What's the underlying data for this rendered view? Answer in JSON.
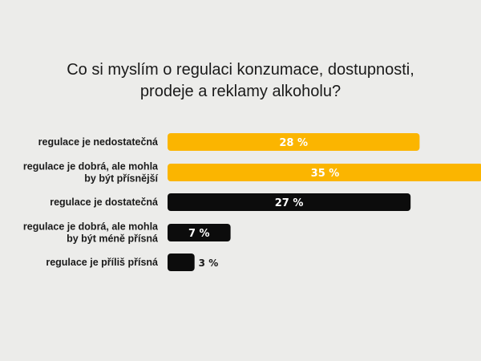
{
  "title_lines": [
    "Co si myslím o regulaci konzumace, dostupnosti,",
    "prodeje a reklamy alkoholu?"
  ],
  "colors": {
    "background": "#ececea",
    "highlight": "#fbb500",
    "dark": "#0c0c0c"
  },
  "chart_data": {
    "type": "bar",
    "orientation": "horizontal",
    "title": "Co si myslím o regulaci konzumace, dostupnosti, prodeje a reklamy alkoholu?",
    "categories": [
      [
        "regulace je nedostatečná"
      ],
      [
        "regulace je dobrá, ale mohla",
        "by být přísnější"
      ],
      [
        "regulace je dostatečná"
      ],
      [
        "regulace je dobrá, ale mohla",
        "by být méně přísná"
      ],
      [
        "regulace je příliš přísná"
      ]
    ],
    "values": [
      28,
      35,
      27,
      7,
      3
    ],
    "value_labels": [
      "28 %",
      "35 %",
      "27 %",
      "7 %",
      "3 %"
    ],
    "bar_colors": [
      "#fbb500",
      "#fbb500",
      "#0c0c0c",
      "#0c0c0c",
      "#0c0c0c"
    ],
    "label_colors": [
      "#ffffff",
      "#ffffff",
      "#ffffff",
      "#ffffff",
      "#1a1a1a"
    ],
    "unit": "%",
    "xlim": [
      0,
      35
    ]
  }
}
